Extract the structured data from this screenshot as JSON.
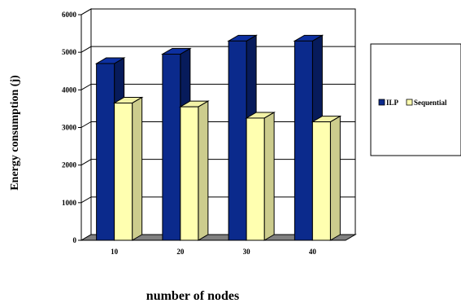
{
  "chart_data": {
    "type": "bar",
    "categories": [
      "10",
      "20",
      "30",
      "40"
    ],
    "series": [
      {
        "name": "ILP",
        "values": [
          4700,
          4950,
          5300,
          5300
        ]
      },
      {
        "name": "Sequential",
        "values": [
          3650,
          3550,
          3250,
          3150
        ]
      }
    ],
    "title": "",
    "xlabel": "number of nodes",
    "ylabel": "Energy consumption (j)",
    "ylim": [
      0,
      6000
    ],
    "yticks": [
      0,
      1000,
      2000,
      3000,
      4000,
      5000,
      6000
    ],
    "grid": true,
    "legend_position": "right",
    "colors": {
      "ILP": "#0b2a8c",
      "Sequential": "#ffffb0",
      "floor": "#808080"
    }
  }
}
